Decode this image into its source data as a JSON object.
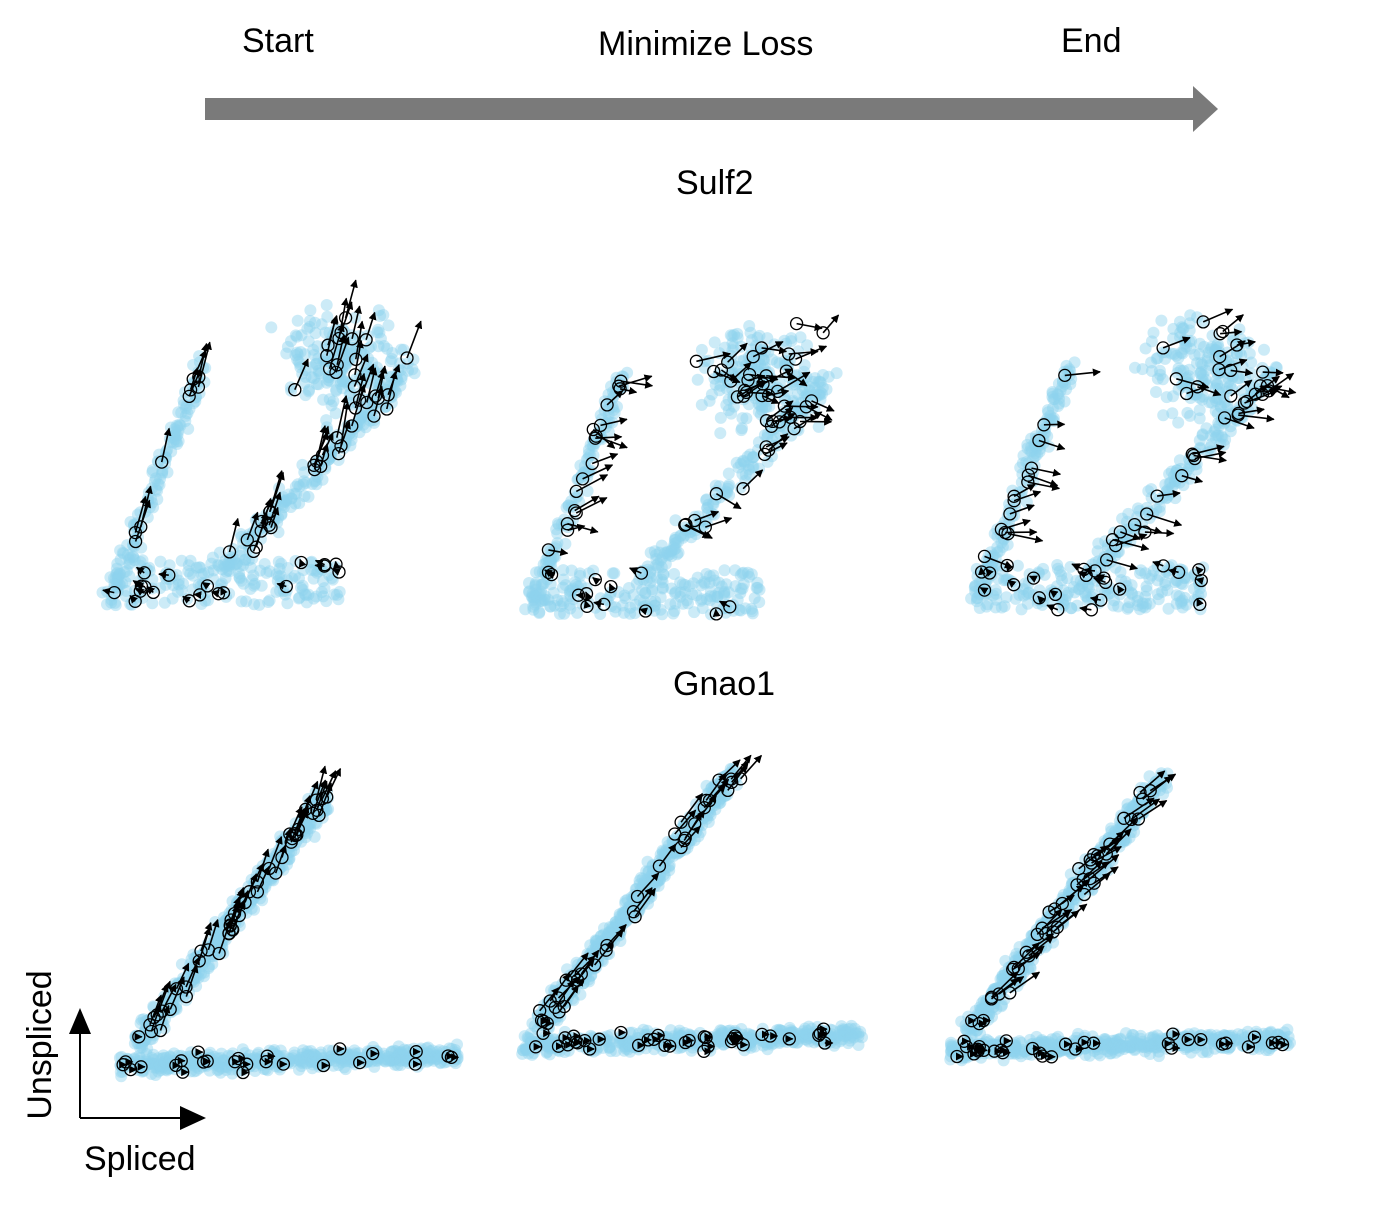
{
  "header": {
    "stages": [
      "Start",
      "Minimize Loss",
      "End"
    ]
  },
  "genes": [
    "Sulf2",
    "Gnao1"
  ],
  "axes": {
    "ylabel": "Unspliced",
    "xlabel": "Spliced"
  },
  "colors": {
    "cells": "#8fd3ee",
    "arrow": "#000000",
    "progress": "#7a7a7a"
  }
}
